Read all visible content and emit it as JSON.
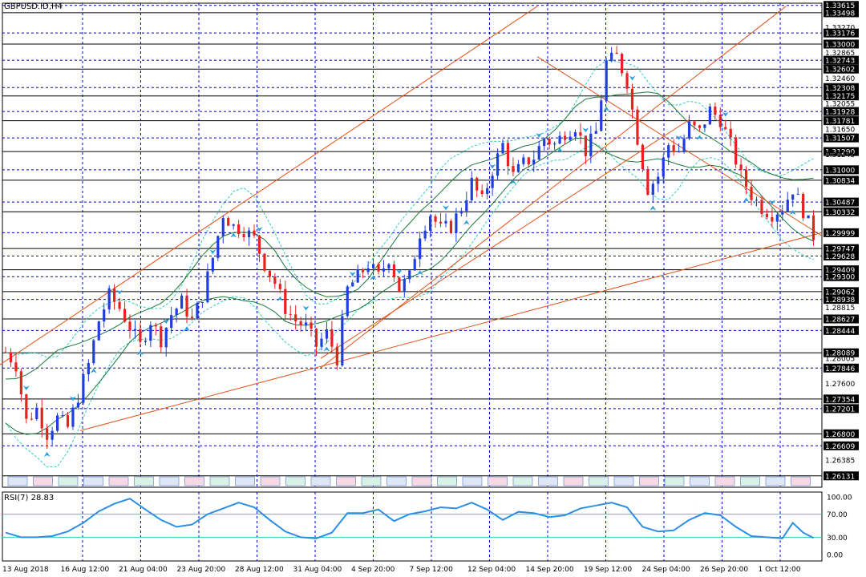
{
  "header": {
    "symbol_label": "GBPUSD.ID,H4"
  },
  "rsi_panel": {
    "label": "RSI(7) 28.83",
    "levels": [
      "100.00",
      "70.00",
      "30.00",
      "0.00"
    ]
  },
  "colors": {
    "grid": "#0000cc",
    "bull_candle": "#1f3de0",
    "bear_candle": "#e8211f",
    "trendline": "#e0531a",
    "bands_outer": "#33ccbb",
    "bands_inner": "#1a7a3a",
    "rsi_line": "#2b8fe6",
    "rsi_level": "#33ccbb",
    "fractal_arrow": "#2a9fe0",
    "session_box_blue": "#dfe7f7",
    "session_box_pink": "#f7d9e6",
    "session_box_green": "#d9f2e6"
  },
  "chart_data": {
    "type": "candlestick",
    "title": "GBPUSD.ID,H4",
    "ylim": [
      1.2595,
      1.3365
    ],
    "x_ticks": [
      "13 Aug 2018",
      "16 Aug 12:00",
      "21 Aug 04:00",
      "23 Aug 20:00",
      "28 Aug 12:00",
      "31 Aug 04:00",
      "4 Sep 20:00",
      "7 Sep 12:00",
      "12 Sep 04:00",
      "14 Sep 20:00",
      "19 Sep 12:00",
      "24 Sep 04:00",
      "26 Sep 20:00",
      "1 Oct 12:00"
    ],
    "price_labels": [
      {
        "v": 1.33615,
        "boxed": true
      },
      {
        "v": 1.33498,
        "boxed": true
      },
      {
        "v": 1.33176,
        "boxed": true
      },
      {
        "v": 1.3327,
        "boxed": false
      },
      {
        "v": 1.33,
        "boxed": true
      },
      {
        "v": 1.32865,
        "boxed": false
      },
      {
        "v": 1.32743,
        "boxed": true
      },
      {
        "v": 1.32602,
        "boxed": true
      },
      {
        "v": 1.3246,
        "boxed": false
      },
      {
        "v": 1.32308,
        "boxed": true
      },
      {
        "v": 1.32175,
        "boxed": true
      },
      {
        "v": 1.32055,
        "boxed": false
      },
      {
        "v": 1.31928,
        "boxed": true
      },
      {
        "v": 1.31781,
        "boxed": true
      },
      {
        "v": 1.3165,
        "boxed": false
      },
      {
        "v": 1.31507,
        "boxed": true
      },
      {
        "v": 1.3129,
        "boxed": true
      },
      {
        "v": 1.31245,
        "boxed": false
      },
      {
        "v": 1.31,
        "boxed": true
      },
      {
        "v": 1.30834,
        "boxed": true
      },
      {
        "v": 1.30487,
        "boxed": true
      },
      {
        "v": 1.30332,
        "boxed": true
      },
      {
        "v": 1.29999,
        "boxed": true
      },
      {
        "v": 1.29747,
        "boxed": true
      },
      {
        "v": 1.29628,
        "boxed": true
      },
      {
        "v": 1.29409,
        "boxed": true
      },
      {
        "v": 1.293,
        "boxed": true
      },
      {
        "v": 1.29062,
        "boxed": true
      },
      {
        "v": 1.28938,
        "boxed": true
      },
      {
        "v": 1.28815,
        "boxed": false
      },
      {
        "v": 1.28627,
        "boxed": true
      },
      {
        "v": 1.28444,
        "boxed": true
      },
      {
        "v": 1.28089,
        "boxed": true
      },
      {
        "v": 1.28005,
        "boxed": false
      },
      {
        "v": 1.27846,
        "boxed": true
      },
      {
        "v": 1.276,
        "boxed": false
      },
      {
        "v": 1.27354,
        "boxed": true
      },
      {
        "v": 1.27201,
        "boxed": true
      },
      {
        "v": 1.268,
        "boxed": true
      },
      {
        "v": 1.26609,
        "boxed": true
      },
      {
        "v": 1.26385,
        "boxed": false
      },
      {
        "v": 1.26131,
        "boxed": true
      }
    ],
    "horizontal_levels": [
      1.33615,
      1.33498,
      1.33176,
      1.33,
      1.32743,
      1.32602,
      1.32308,
      1.32175,
      1.31928,
      1.31781,
      1.31507,
      1.3129,
      1.31,
      1.30834,
      1.30487,
      1.30332,
      1.29999,
      1.29747,
      1.29628,
      1.29409,
      1.293,
      1.29062,
      1.28938,
      1.28627,
      1.28444,
      1.28089,
      1.27846,
      1.27354,
      1.27201,
      1.268,
      1.26609,
      1.26131
    ],
    "price_path": [
      [
        0,
        1.281
      ],
      [
        2,
        1.279
      ],
      [
        4,
        1.27
      ],
      [
        6,
        1.272
      ],
      [
        8,
        1.268
      ],
      [
        10,
        1.2705
      ],
      [
        12,
        1.269
      ],
      [
        14,
        1.274
      ],
      [
        16,
        1.279
      ],
      [
        18,
        1.286
      ],
      [
        20,
        1.29
      ],
      [
        22,
        1.288
      ],
      [
        24,
        1.285
      ],
      [
        26,
        1.282
      ],
      [
        28,
        1.286
      ],
      [
        30,
        1.283
      ],
      [
        32,
        1.287
      ],
      [
        34,
        1.289
      ],
      [
        36,
        1.286
      ],
      [
        38,
        1.29
      ],
      [
        40,
        1.296
      ],
      [
        42,
        1.303
      ],
      [
        44,
        1.301
      ],
      [
        46,
        1.3005
      ],
      [
        48,
        1.299
      ],
      [
        50,
        1.295
      ],
      [
        52,
        1.292
      ],
      [
        54,
        1.288
      ],
      [
        56,
        1.286
      ],
      [
        58,
        1.285
      ],
      [
        60,
        1.282
      ],
      [
        62,
        1.284
      ],
      [
        64,
        1.28
      ],
      [
        66,
        1.291
      ],
      [
        68,
        1.293
      ],
      [
        70,
        1.295
      ],
      [
        72,
        1.293
      ],
      [
        74,
        1.296
      ],
      [
        76,
        1.291
      ],
      [
        78,
        1.293
      ],
      [
        80,
        1.3
      ],
      [
        82,
        1.303
      ],
      [
        84,
        1.3005
      ],
      [
        86,
        1.301
      ],
      [
        88,
        1.304
      ],
      [
        90,
        1.308
      ],
      [
        92,
        1.305
      ],
      [
        94,
        1.31
      ],
      [
        96,
        1.314
      ],
      [
        98,
        1.309
      ],
      [
        100,
        1.311
      ],
      [
        102,
        1.312
      ],
      [
        104,
        1.315
      ],
      [
        106,
        1.314
      ],
      [
        108,
        1.316
      ],
      [
        110,
        1.317
      ],
      [
        112,
        1.313
      ],
      [
        114,
        1.316
      ],
      [
        116,
        1.327
      ],
      [
        118,
        1.328
      ],
      [
        120,
        1.324
      ],
      [
        122,
        1.315
      ],
      [
        124,
        1.307
      ],
      [
        126,
        1.309
      ],
      [
        128,
        1.314
      ],
      [
        130,
        1.313
      ],
      [
        132,
        1.317
      ],
      [
        134,
        1.316
      ],
      [
        136,
        1.3195
      ],
      [
        138,
        1.318
      ],
      [
        140,
        1.314
      ],
      [
        142,
        1.309
      ],
      [
        144,
        1.306
      ],
      [
        146,
        1.304
      ],
      [
        148,
        1.303
      ],
      [
        150,
        1.304
      ],
      [
        152,
        1.307
      ],
      [
        154,
        1.3035
      ],
      [
        156,
        1.2995
      ]
    ],
    "rsi": {
      "ylim": [
        0,
        100
      ],
      "levels": [
        30,
        70
      ],
      "points": [
        [
          0,
          38
        ],
        [
          3,
          30
        ],
        [
          6,
          30
        ],
        [
          9,
          32
        ],
        [
          12,
          40
        ],
        [
          15,
          55
        ],
        [
          18,
          75
        ],
        [
          21,
          88
        ],
        [
          24,
          97
        ],
        [
          27,
          78
        ],
        [
          30,
          60
        ],
        [
          33,
          48
        ],
        [
          36,
          52
        ],
        [
          39,
          70
        ],
        [
          42,
          80
        ],
        [
          45,
          90
        ],
        [
          48,
          82
        ],
        [
          51,
          60
        ],
        [
          54,
          40
        ],
        [
          57,
          30
        ],
        [
          60,
          28
        ],
        [
          63,
          38
        ],
        [
          66,
          72
        ],
        [
          69,
          72
        ],
        [
          72,
          78
        ],
        [
          75,
          58
        ],
        [
          78,
          70
        ],
        [
          81,
          75
        ],
        [
          84,
          82
        ],
        [
          87,
          80
        ],
        [
          90,
          90
        ],
        [
          93,
          78
        ],
        [
          96,
          60
        ],
        [
          99,
          74
        ],
        [
          102,
          72
        ],
        [
          105,
          65
        ],
        [
          108,
          68
        ],
        [
          111,
          80
        ],
        [
          114,
          85
        ],
        [
          117,
          90
        ],
        [
          120,
          82
        ],
        [
          123,
          48
        ],
        [
          126,
          40
        ],
        [
          129,
          42
        ],
        [
          132,
          60
        ],
        [
          135,
          72
        ],
        [
          138,
          68
        ],
        [
          141,
          48
        ],
        [
          144,
          32
        ],
        [
          147,
          30
        ],
        [
          150,
          28
        ],
        [
          152,
          55
        ],
        [
          154,
          38
        ],
        [
          156,
          28.83
        ]
      ]
    }
  }
}
